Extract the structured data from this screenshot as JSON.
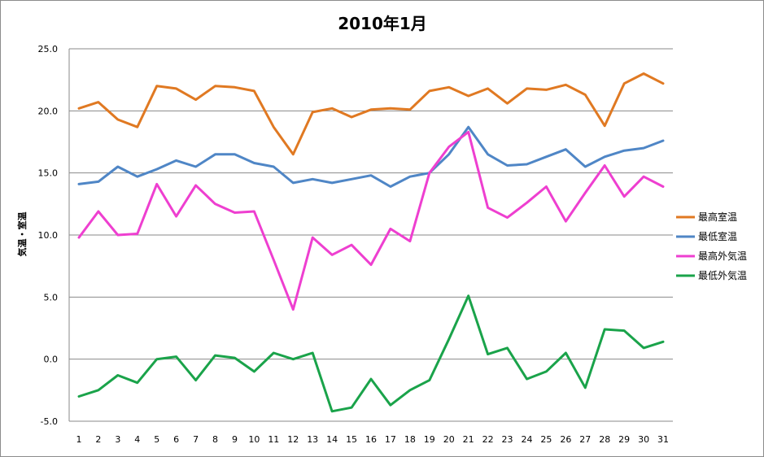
{
  "chart_data": {
    "type": "line",
    "title": "2010年1月",
    "xlabel": "",
    "ylabel": "気温・室温",
    "x": [
      1,
      2,
      3,
      4,
      5,
      6,
      7,
      8,
      9,
      10,
      11,
      12,
      13,
      14,
      15,
      16,
      17,
      18,
      19,
      20,
      21,
      22,
      23,
      24,
      25,
      26,
      27,
      28,
      29,
      30,
      31
    ],
    "ylim": [
      -5.0,
      25.0
    ],
    "yticks": [
      "25.0",
      "20.0",
      "15.0",
      "10.0",
      "5.0",
      "0.0",
      "-5.0"
    ],
    "grid": true,
    "legend_position": "right",
    "series": [
      {
        "name": "最高室温",
        "color": "#e07922",
        "values": [
          20.2,
          20.7,
          19.3,
          18.7,
          22.0,
          21.8,
          20.9,
          22.0,
          21.9,
          21.6,
          18.7,
          16.5,
          19.9,
          20.2,
          19.5,
          20.1,
          20.2,
          20.1,
          21.6,
          21.9,
          21.2,
          21.8,
          20.6,
          21.8,
          21.7,
          22.1,
          21.3,
          18.8,
          22.2,
          23.0,
          22.2
        ]
      },
      {
        "name": "最低室温",
        "color": "#4f86c6",
        "values": [
          14.1,
          14.3,
          15.5,
          14.7,
          15.3,
          16.0,
          15.5,
          16.5,
          16.5,
          15.8,
          15.5,
          14.2,
          14.5,
          14.2,
          14.5,
          14.8,
          13.9,
          14.7,
          15.0,
          16.5,
          18.7,
          16.5,
          15.6,
          15.7,
          16.3,
          16.9,
          15.5,
          16.3,
          16.8,
          17.0,
          17.6
        ]
      },
      {
        "name": "最高外気温",
        "color": "#ee3fd0",
        "values": [
          9.8,
          11.9,
          10.0,
          10.1,
          14.1,
          11.5,
          14.0,
          12.5,
          11.8,
          11.9,
          8.0,
          4.0,
          9.8,
          8.4,
          9.2,
          7.6,
          10.5,
          9.5,
          15.0,
          17.1,
          18.3,
          12.2,
          11.4,
          12.6,
          13.9,
          11.1,
          13.4,
          15.6,
          13.1,
          14.7,
          13.9
        ]
      },
      {
        "name": "最低外気温",
        "color": "#1aa34a",
        "values": [
          -3.0,
          -2.5,
          -1.3,
          -1.9,
          0.0,
          0.2,
          -1.7,
          0.3,
          0.1,
          -1.0,
          0.5,
          0.0,
          0.5,
          -4.2,
          -3.9,
          -1.6,
          -3.7,
          -2.5,
          -1.7,
          1.6,
          5.1,
          0.4,
          0.9,
          -1.6,
          -1.0,
          0.5,
          -2.3,
          2.4,
          2.3,
          0.9,
          1.4
        ]
      }
    ]
  }
}
